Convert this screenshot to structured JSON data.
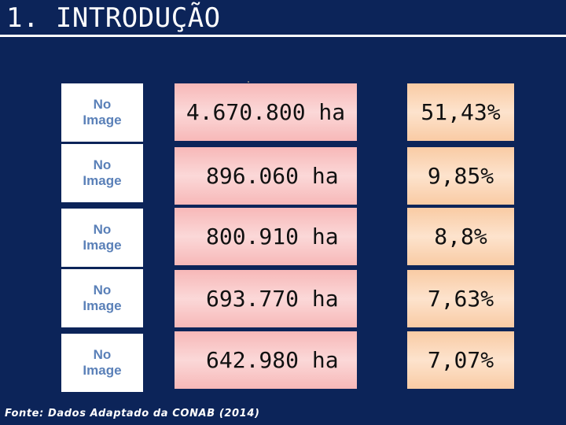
{
  "slide": {
    "title": "1. INTRODUÇÃO",
    "source": "Fonte: Dados Adaptado da CONAB (2014)"
  },
  "rows": [
    {
      "image_label": "No\nImage",
      "area": "4.670.800 ha",
      "percent": "51,43%"
    },
    {
      "image_label": "No\nImage",
      "area": "896.060 ha",
      "percent": "9,85%"
    },
    {
      "image_label": "No\nImage",
      "area": "800.910 ha",
      "percent": "8,8%"
    },
    {
      "image_label": "No\nImage",
      "area": "693.770 ha",
      "percent": "7,63%"
    },
    {
      "image_label": "No\nImage",
      "area": "642.980 ha",
      "percent": "7,07%"
    }
  ],
  "colors": {
    "background": "#0c2459",
    "area_fill": "#f7b8b8",
    "percent_fill": "#f9cba4",
    "placeholder_text": "#5a80b8"
  }
}
